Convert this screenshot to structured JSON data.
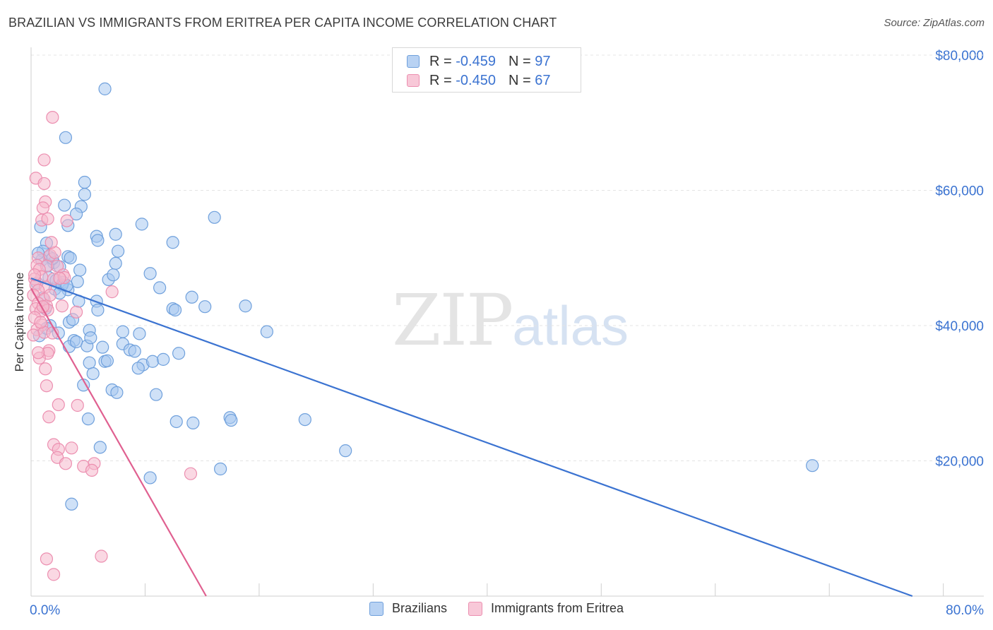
{
  "header": {
    "title": "BRAZILIAN VS IMMIGRANTS FROM ERITREA PER CAPITA INCOME CORRELATION CHART",
    "source": "Source: ZipAtlas.com"
  },
  "legend": {
    "rows": [
      {
        "r_label": "R =",
        "r_value": "-0.459",
        "n_label": "N =",
        "n_value": "97"
      },
      {
        "r_label": "R =",
        "r_value": "-0.450",
        "n_label": "N =",
        "n_value": "67"
      }
    ]
  },
  "watermark": {
    "zip": "ZIP",
    "atlas": "atlas"
  },
  "colors": {
    "blue": "#3b73d1",
    "blue_fill": "#a8c8f0",
    "blue_stroke": "#6fa0dc",
    "pink": "#e06090",
    "pink_fill": "#f5b8cc",
    "pink_stroke": "#ec8fb0",
    "grid": "#e4e4e4",
    "tick_label": "#3b73d1"
  },
  "chart_data": {
    "type": "scatter",
    "title": "BRAZILIAN VS IMMIGRANTS FROM ERITREA PER CAPITA INCOME CORRELATION CHART",
    "xlabel": "",
    "ylabel": "Per Capita Income",
    "xlim": [
      0,
      80
    ],
    "ylim": [
      0,
      80000
    ],
    "x_tick_labels": {
      "min": "0.0%",
      "max": "80.0%"
    },
    "y_ticks": [
      {
        "value": 20000,
        "label": "$20,000"
      },
      {
        "value": 40000,
        "label": "$40,000"
      },
      {
        "value": 60000,
        "label": "$60,000"
      },
      {
        "value": 80000,
        "label": "$80,000"
      }
    ],
    "grid": true,
    "series": [
      {
        "name": "Brazilians",
        "r": -0.459,
        "n": 97,
        "trend": {
          "x0": 0.0,
          "y0": 47000,
          "x1": 74.0,
          "y1": 0
        },
        "points": [
          [
            6.2,
            75000
          ],
          [
            2.9,
            67800
          ],
          [
            4.5,
            61200
          ],
          [
            4.5,
            59400
          ],
          [
            2.8,
            57800
          ],
          [
            4.2,
            57600
          ],
          [
            0.8,
            54600
          ],
          [
            3.1,
            54800
          ],
          [
            3.8,
            56500
          ],
          [
            1.3,
            52200
          ],
          [
            1.0,
            51000
          ],
          [
            5.5,
            53200
          ],
          [
            9.3,
            55000
          ],
          [
            15.4,
            56000
          ],
          [
            1.5,
            50200
          ],
          [
            0.9,
            49700
          ],
          [
            3.1,
            50200
          ],
          [
            7.3,
            51000
          ],
          [
            11.9,
            52300
          ],
          [
            5.6,
            52600
          ],
          [
            7.1,
            53500
          ],
          [
            0.6,
            50700
          ],
          [
            1.9,
            49300
          ],
          [
            1.4,
            48900
          ],
          [
            2.4,
            48700
          ],
          [
            4.1,
            48200
          ],
          [
            7.1,
            49200
          ],
          [
            10.0,
            47700
          ],
          [
            1.5,
            47100
          ],
          [
            2.1,
            46700
          ],
          [
            2.7,
            46400
          ],
          [
            3.9,
            46500
          ],
          [
            6.5,
            46800
          ],
          [
            6.9,
            47500
          ],
          [
            2.0,
            45400
          ],
          [
            3.1,
            45300
          ],
          [
            10.8,
            45600
          ],
          [
            13.5,
            44200
          ],
          [
            11.9,
            42500
          ],
          [
            12.1,
            42300
          ],
          [
            14.6,
            42800
          ],
          [
            18.0,
            42900
          ],
          [
            4.0,
            43600
          ],
          [
            5.5,
            43600
          ],
          [
            5.6,
            42300
          ],
          [
            3.2,
            40500
          ],
          [
            3.5,
            40900
          ],
          [
            4.9,
            39300
          ],
          [
            7.7,
            39100
          ],
          [
            9.1,
            38800
          ],
          [
            19.8,
            39100
          ],
          [
            3.6,
            37800
          ],
          [
            3.2,
            36900
          ],
          [
            4.7,
            37000
          ],
          [
            3.8,
            37600
          ],
          [
            5.0,
            38200
          ],
          [
            6.0,
            36800
          ],
          [
            7.7,
            37300
          ],
          [
            8.3,
            36400
          ],
          [
            8.7,
            36200
          ],
          [
            12.4,
            35900
          ],
          [
            6.2,
            34700
          ],
          [
            9.4,
            34200
          ],
          [
            10.2,
            34700
          ],
          [
            11.1,
            35000
          ],
          [
            4.9,
            34500
          ],
          [
            5.2,
            32900
          ],
          [
            9.0,
            33700
          ],
          [
            4.4,
            31200
          ],
          [
            6.8,
            30500
          ],
          [
            7.2,
            30100
          ],
          [
            10.5,
            29800
          ],
          [
            6.4,
            34800
          ],
          [
            16.7,
            26400
          ],
          [
            16.8,
            26000
          ],
          [
            23.0,
            26100
          ],
          [
            12.2,
            25800
          ],
          [
            13.6,
            25600
          ],
          [
            4.8,
            26200
          ],
          [
            5.8,
            22000
          ],
          [
            26.4,
            21500
          ],
          [
            65.6,
            19300
          ],
          [
            15.9,
            18800
          ],
          [
            10.0,
            17500
          ],
          [
            3.4,
            13600
          ],
          [
            1.2,
            42500
          ],
          [
            1.6,
            40000
          ],
          [
            0.7,
            38500
          ],
          [
            2.6,
            46000
          ],
          [
            1.8,
            49900
          ],
          [
            3.3,
            50000
          ],
          [
            0.5,
            46300
          ],
          [
            2.4,
            44800
          ],
          [
            1.0,
            44100
          ],
          [
            1.3,
            39600
          ],
          [
            2.3,
            38900
          ],
          [
            3.0,
            45900
          ]
        ]
      },
      {
        "name": "Immigrants from Eritrea",
        "r": -0.45,
        "n": 67,
        "trend": {
          "x0": 0.0,
          "y0": 45500,
          "x1": 14.7,
          "y1": 0
        },
        "points": [
          [
            1.8,
            70800
          ],
          [
            1.1,
            64500
          ],
          [
            0.4,
            61800
          ],
          [
            1.1,
            61000
          ],
          [
            1.2,
            58300
          ],
          [
            1.0,
            57400
          ],
          [
            0.9,
            55600
          ],
          [
            1.4,
            55800
          ],
          [
            3.0,
            55500
          ],
          [
            0.6,
            50000
          ],
          [
            1.6,
            50400
          ],
          [
            0.5,
            48900
          ],
          [
            1.3,
            48800
          ],
          [
            0.7,
            48300
          ],
          [
            2.2,
            48800
          ],
          [
            0.9,
            47200
          ],
          [
            2.7,
            47500
          ],
          [
            0.3,
            46900
          ],
          [
            1.9,
            46900
          ],
          [
            2.8,
            47100
          ],
          [
            0.4,
            46000
          ],
          [
            1.2,
            45700
          ],
          [
            0.6,
            45200
          ],
          [
            6.8,
            45000
          ],
          [
            0.2,
            44500
          ],
          [
            1.1,
            43900
          ],
          [
            0.6,
            43300
          ],
          [
            1.3,
            42900
          ],
          [
            2.6,
            42900
          ],
          [
            0.4,
            42500
          ],
          [
            0.8,
            42100
          ],
          [
            1.4,
            42300
          ],
          [
            3.8,
            42000
          ],
          [
            0.3,
            41200
          ],
          [
            0.9,
            40100
          ],
          [
            0.5,
            39400
          ],
          [
            1.1,
            39000
          ],
          [
            1.8,
            38900
          ],
          [
            0.2,
            38600
          ],
          [
            1.5,
            36300
          ],
          [
            1.4,
            35900
          ],
          [
            0.7,
            35200
          ],
          [
            1.2,
            33600
          ],
          [
            1.3,
            31100
          ],
          [
            3.9,
            28200
          ],
          [
            2.3,
            28300
          ],
          [
            1.5,
            26500
          ],
          [
            1.9,
            22400
          ],
          [
            2.3,
            21700
          ],
          [
            3.4,
            21900
          ],
          [
            2.2,
            20500
          ],
          [
            2.9,
            19600
          ],
          [
            5.3,
            19600
          ],
          [
            4.4,
            19200
          ],
          [
            5.1,
            18600
          ],
          [
            13.4,
            18100
          ],
          [
            1.3,
            5500
          ],
          [
            5.9,
            5900
          ],
          [
            1.9,
            3200
          ],
          [
            0.3,
            47500
          ],
          [
            1.6,
            44500
          ],
          [
            2.0,
            50800
          ],
          [
            0.8,
            40500
          ],
          [
            2.4,
            47000
          ],
          [
            0.6,
            36000
          ],
          [
            1.0,
            42800
          ],
          [
            1.7,
            52300
          ]
        ]
      }
    ]
  },
  "bottom_legend": [
    {
      "label": "Brazilians"
    },
    {
      "label": "Immigrants from Eritrea"
    }
  ]
}
